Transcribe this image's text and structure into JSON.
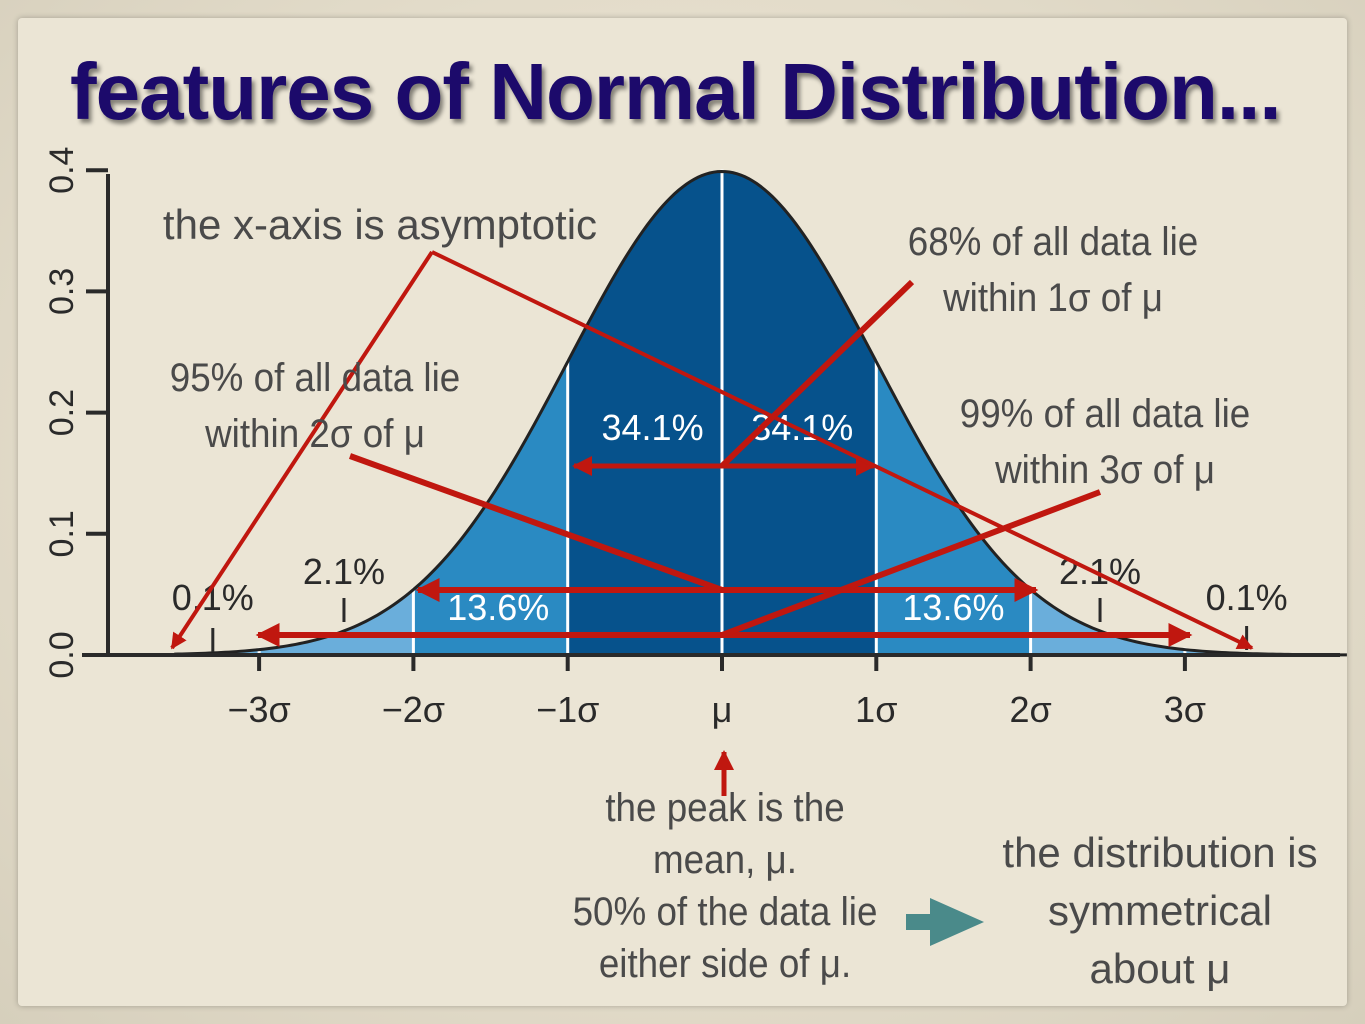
{
  "title": "features of Normal Distribution...",
  "chart_data": {
    "type": "area",
    "y_ticks": [
      "0.0",
      "0.1",
      "0.2",
      "0.3",
      "0.4"
    ],
    "ylim": [
      0,
      0.4
    ],
    "x_ticks": [
      "−3σ",
      "−2σ",
      "−1σ",
      "μ",
      "1σ",
      "2σ",
      "3σ"
    ],
    "xlim": [
      -3.55,
      4.05
    ],
    "bands": [
      {
        "from": -1,
        "to": 0,
        "value": "34.1%",
        "color": "#06528c"
      },
      {
        "from": 0,
        "to": 1,
        "value": "34.1%",
        "color": "#06528c"
      },
      {
        "from": -2,
        "to": -1,
        "value": "13.6%",
        "color": "#2a8ac2"
      },
      {
        "from": 1,
        "to": 2,
        "value": "13.6%",
        "color": "#2a8ac2"
      },
      {
        "from": -3,
        "to": -2,
        "value": "2.1%",
        "color": "#6aaedb"
      },
      {
        "from": 2,
        "to": 3,
        "value": "2.1%",
        "color": "#6aaedb"
      },
      {
        "from": -3.55,
        "to": -3,
        "value": "0.1%",
        "color": "#6aaedb"
      },
      {
        "from": 3,
        "to": 4.05,
        "value": "0.1%",
        "color": "#6aaedb"
      }
    ],
    "curve_color": "#222222"
  },
  "annotations": {
    "asymptotic": "the x-axis is asymptotic",
    "sixtyeight_l1": "68% of all data lie",
    "sixtyeight_l2": "within 1σ of μ",
    "ninetyfive_l1": "95% of all data lie",
    "ninetyfive_l2": "within 2σ of μ",
    "ninetynine_l1": "99% of all data lie",
    "ninetynine_l2": "within 3σ of μ",
    "peak_l1": "the peak is the",
    "peak_l2": "mean, μ.",
    "peak_l3": "50% of the data lie",
    "peak_l4": "either side of μ.",
    "sym_l1": "the distribution is",
    "sym_l2": "symmetrical",
    "sym_l3": "about μ"
  },
  "colors": {
    "title": "#1c0a6b",
    "arrow_red": "#c0170f",
    "arrow_teal": "#4a8a8a",
    "text": "#4a4a4a"
  }
}
